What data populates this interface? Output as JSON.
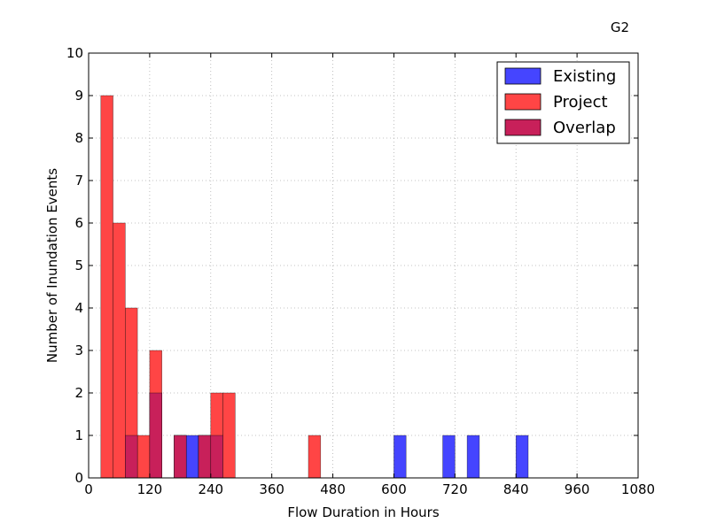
{
  "chart_data": {
    "type": "bar",
    "title": "G2",
    "xlabel": "Flow Duration in Hours",
    "ylabel": "Number of Inundation Events",
    "xlim": [
      0,
      1080
    ],
    "ylim": [
      0,
      10
    ],
    "xticks": [
      0,
      120,
      240,
      360,
      480,
      600,
      720,
      840,
      960,
      1080
    ],
    "yticks": [
      0,
      1,
      2,
      3,
      4,
      5,
      6,
      7,
      8,
      9,
      10
    ],
    "grid": true,
    "legend_position": "top-right",
    "bin_width": 24,
    "series": [
      {
        "name": "Existing",
        "color": "#4545ff",
        "bins": [
          {
            "x0": 72,
            "count": 1
          },
          {
            "x0": 120,
            "count": 2
          },
          {
            "x0": 168,
            "count": 1
          },
          {
            "x0": 192,
            "count": 1
          },
          {
            "x0": 216,
            "count": 1
          },
          {
            "x0": 240,
            "count": 1
          },
          {
            "x0": 600,
            "count": 1
          },
          {
            "x0": 696,
            "count": 1
          },
          {
            "x0": 744,
            "count": 1
          },
          {
            "x0": 840,
            "count": 1
          }
        ]
      },
      {
        "name": "Project",
        "color": "#ff4545",
        "bins": [
          {
            "x0": 24,
            "count": 9
          },
          {
            "x0": 48,
            "count": 6
          },
          {
            "x0": 72,
            "count": 4
          },
          {
            "x0": 96,
            "count": 1
          },
          {
            "x0": 120,
            "count": 3
          },
          {
            "x0": 168,
            "count": 1
          },
          {
            "x0": 216,
            "count": 1
          },
          {
            "x0": 240,
            "count": 2
          },
          {
            "x0": 264,
            "count": 2
          },
          {
            "x0": 432,
            "count": 1
          }
        ]
      },
      {
        "name": "Overlap",
        "color": "#c8205a",
        "bins": [
          {
            "x0": 72,
            "count": 1
          },
          {
            "x0": 120,
            "count": 2
          },
          {
            "x0": 168,
            "count": 1
          },
          {
            "x0": 216,
            "count": 1
          },
          {
            "x0": 240,
            "count": 1
          }
        ]
      }
    ]
  }
}
